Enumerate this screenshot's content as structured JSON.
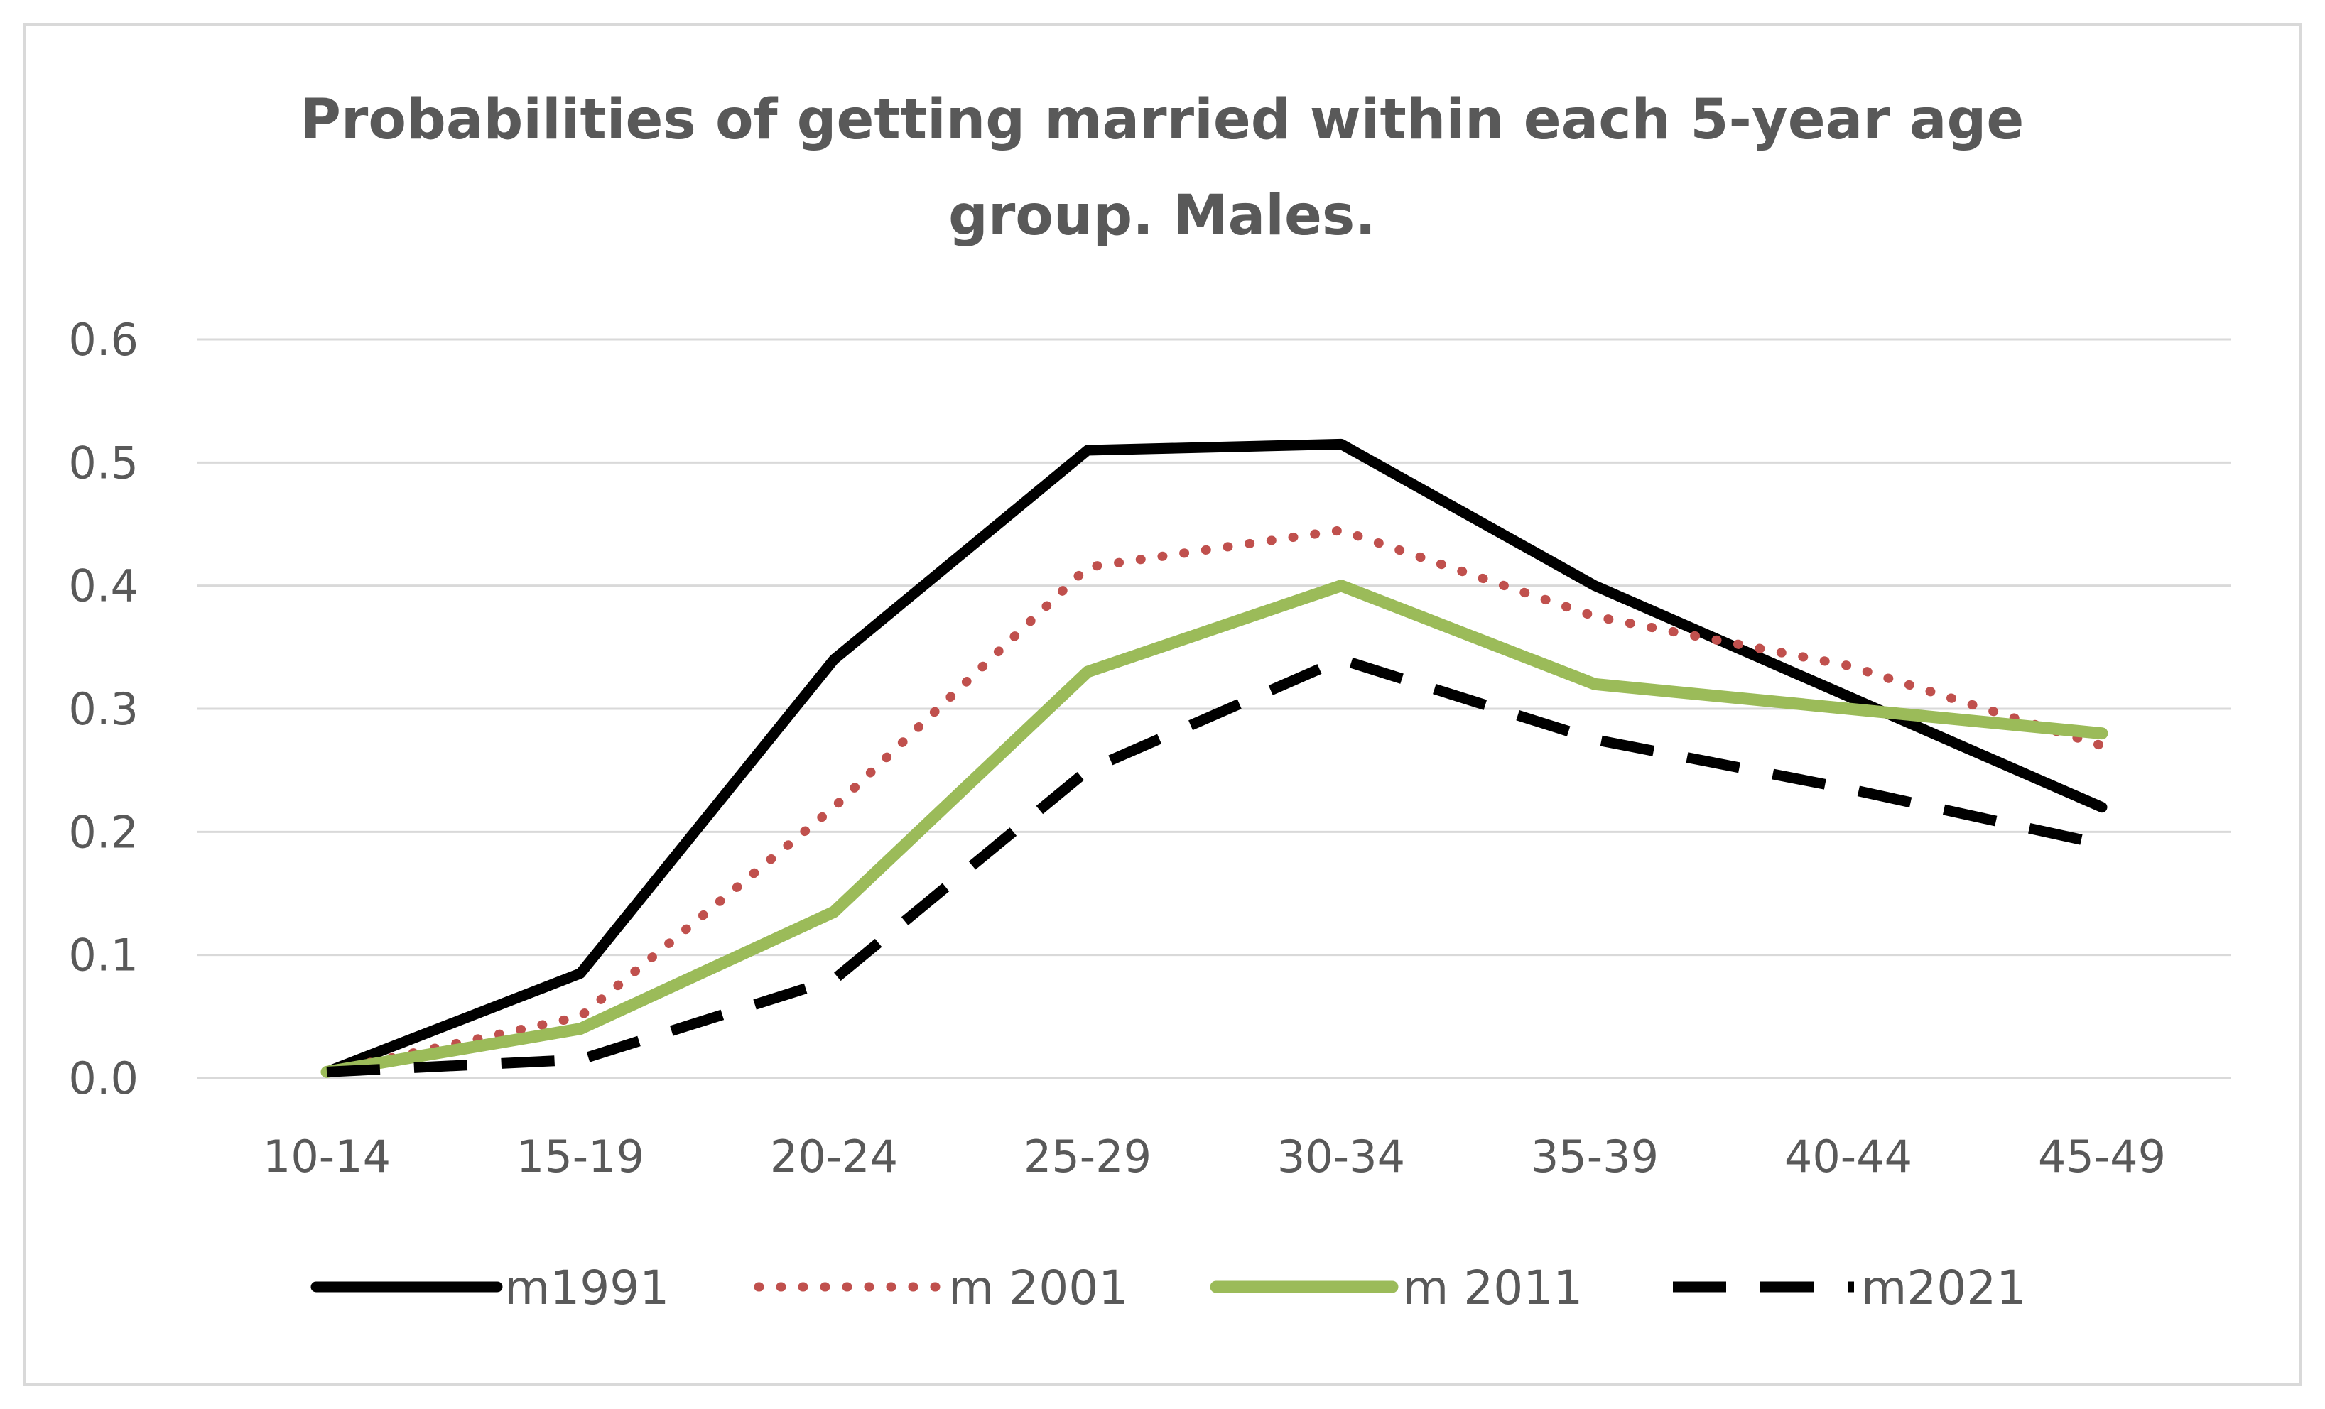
{
  "chart_data": {
    "type": "line",
    "title": "Probabilities  of getting married within  each 5-year age group. Males.",
    "title_lines": [
      "Probabilities  of getting married within  each 5-year age",
      "group. Males."
    ],
    "xlabel": "",
    "ylabel": "",
    "categories": [
      "10-14",
      "15-19",
      "20-24",
      "25-29",
      "30-34",
      "35-39",
      "40-44",
      "45-49"
    ],
    "ylim": [
      0,
      0.6
    ],
    "yticks": [
      "0.0",
      "0.1",
      "0.2",
      "0.3",
      "0.4",
      "0.5",
      "0.6"
    ],
    "grid": true,
    "legend_position": "bottom",
    "series": [
      {
        "name": "m1991",
        "color": "#000000",
        "style": "solid",
        "values": [
          0.005,
          0.085,
          0.34,
          0.51,
          0.515,
          0.4,
          0.31,
          0.22
        ]
      },
      {
        "name": "m 2001",
        "color": "#c0504d",
        "style": "dotted",
        "values": [
          0.005,
          0.05,
          0.22,
          0.415,
          0.445,
          0.375,
          0.335,
          0.27
        ]
      },
      {
        "name": "m 2011",
        "color": "#9bbb59",
        "style": "solid",
        "values": [
          0.005,
          0.04,
          0.135,
          0.33,
          0.4,
          0.32,
          0.3,
          0.28
        ]
      },
      {
        "name": "m2021",
        "color": "#000000",
        "style": "dashed",
        "values": [
          0.005,
          0.015,
          0.08,
          0.25,
          0.34,
          0.275,
          0.235,
          0.19
        ]
      }
    ]
  }
}
